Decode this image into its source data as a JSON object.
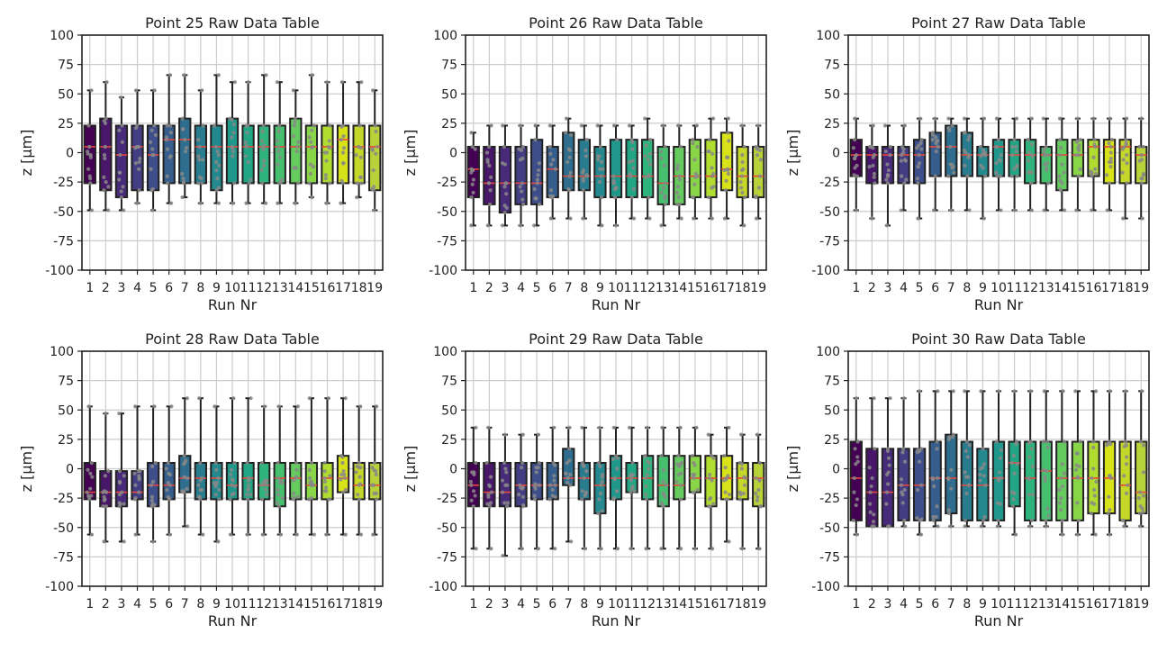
{
  "figure": {
    "background": "#ffffff",
    "grid_color": "#cccccc",
    "median_color": "#e8453c",
    "whisker_color": "#222222",
    "point_color": "#888888"
  },
  "chart_data": [
    {
      "type": "box",
      "title": "Point 25 Raw Data Table",
      "xlabel": "Run Nr",
      "ylabel": "z [µm]",
      "ylim": [
        -100,
        100
      ],
      "yticks": [
        -100,
        -75,
        -50,
        -25,
        0,
        25,
        50,
        75,
        100
      ],
      "categories": [
        "1",
        "2",
        "3",
        "4",
        "5",
        "6",
        "7",
        "8",
        "9",
        "10",
        "11",
        "12",
        "13",
        "14",
        "15",
        "16",
        "17",
        "18",
        "19"
      ],
      "grid": true,
      "boxes": [
        {
          "whislo": -49,
          "q1": -26,
          "med": 5,
          "q3": 23,
          "whishi": 53
        },
        {
          "whislo": -49,
          "q1": -32,
          "med": 5,
          "q3": 29,
          "whishi": 60
        },
        {
          "whislo": -49,
          "q1": -38,
          "med": -2,
          "q3": 23,
          "whishi": 47
        },
        {
          "whislo": -43,
          "q1": -32,
          "med": 5,
          "q3": 23,
          "whishi": 53
        },
        {
          "whislo": -49,
          "q1": -32,
          "med": -2,
          "q3": 23,
          "whishi": 53
        },
        {
          "whislo": -43,
          "q1": -26,
          "med": 11,
          "q3": 23,
          "whishi": 66
        },
        {
          "whislo": -38,
          "q1": -26,
          "med": 11,
          "q3": 29,
          "whishi": 66
        },
        {
          "whislo": -43,
          "q1": -26,
          "med": 5,
          "q3": 23,
          "whishi": 53
        },
        {
          "whislo": -43,
          "q1": -32,
          "med": 5,
          "q3": 23,
          "whishi": 66
        },
        {
          "whislo": -43,
          "q1": -26,
          "med": 5,
          "q3": 29,
          "whishi": 60
        },
        {
          "whislo": -43,
          "q1": -26,
          "med": 5,
          "q3": 23,
          "whishi": 60
        },
        {
          "whislo": -43,
          "q1": -26,
          "med": 5,
          "q3": 23,
          "whishi": 66
        },
        {
          "whislo": -43,
          "q1": -26,
          "med": 5,
          "q3": 23,
          "whishi": 60
        },
        {
          "whislo": -43,
          "q1": -26,
          "med": 5,
          "q3": 29,
          "whishi": 53
        },
        {
          "whislo": -38,
          "q1": -26,
          "med": 5,
          "q3": 23,
          "whishi": 66
        },
        {
          "whislo": -43,
          "q1": -26,
          "med": 5,
          "q3": 23,
          "whishi": 60
        },
        {
          "whislo": -43,
          "q1": -26,
          "med": 11,
          "q3": 23,
          "whishi": 60
        },
        {
          "whislo": -38,
          "q1": -26,
          "med": 5,
          "q3": 23,
          "whishi": 60
        },
        {
          "whislo": -49,
          "q1": -32,
          "med": 5,
          "q3": 23,
          "whishi": 53
        }
      ]
    },
    {
      "type": "box",
      "title": "Point 26 Raw Data Table",
      "xlabel": "Run Nr",
      "ylabel": "z [µm]",
      "ylim": [
        -100,
        100
      ],
      "yticks": [
        -100,
        -75,
        -50,
        -25,
        0,
        25,
        50,
        75,
        100
      ],
      "categories": [
        "1",
        "2",
        "3",
        "4",
        "5",
        "6",
        "7",
        "8",
        "9",
        "10",
        "11",
        "12",
        "13",
        "14",
        "15",
        "16",
        "17",
        "18",
        "19"
      ],
      "grid": true,
      "boxes": [
        {
          "whislo": -62,
          "q1": -38,
          "med": -14,
          "q3": 5,
          "whishi": 17
        },
        {
          "whislo": -62,
          "q1": -44,
          "med": -26,
          "q3": 5,
          "whishi": 23
        },
        {
          "whislo": -62,
          "q1": -51,
          "med": -26,
          "q3": 5,
          "whishi": 23
        },
        {
          "whislo": -62,
          "q1": -44,
          "med": -26,
          "q3": 5,
          "whishi": 23
        },
        {
          "whislo": -62,
          "q1": -44,
          "med": -26,
          "q3": 11,
          "whishi": 23
        },
        {
          "whislo": -56,
          "q1": -38,
          "med": -14,
          "q3": 5,
          "whishi": 23
        },
        {
          "whislo": -56,
          "q1": -32,
          "med": -20,
          "q3": 17,
          "whishi": 29
        },
        {
          "whislo": -56,
          "q1": -32,
          "med": -20,
          "q3": 11,
          "whishi": 23
        },
        {
          "whislo": -62,
          "q1": -38,
          "med": -20,
          "q3": 5,
          "whishi": 23
        },
        {
          "whislo": -62,
          "q1": -38,
          "med": -20,
          "q3": 11,
          "whishi": 23
        },
        {
          "whislo": -56,
          "q1": -38,
          "med": -20,
          "q3": 11,
          "whishi": 23
        },
        {
          "whislo": -56,
          "q1": -38,
          "med": -20,
          "q3": 11,
          "whishi": 29
        },
        {
          "whislo": -62,
          "q1": -44,
          "med": -26,
          "q3": 5,
          "whishi": 23
        },
        {
          "whislo": -56,
          "q1": -44,
          "med": -20,
          "q3": 5,
          "whishi": 23
        },
        {
          "whislo": -56,
          "q1": -38,
          "med": -20,
          "q3": 11,
          "whishi": 23
        },
        {
          "whislo": -56,
          "q1": -38,
          "med": -20,
          "q3": 11,
          "whishi": 29
        },
        {
          "whislo": -56,
          "q1": -32,
          "med": -14,
          "q3": 17,
          "whishi": 29
        },
        {
          "whislo": -62,
          "q1": -38,
          "med": -20,
          "q3": 5,
          "whishi": 23
        },
        {
          "whislo": -56,
          "q1": -38,
          "med": -20,
          "q3": 5,
          "whishi": 23
        }
      ]
    },
    {
      "type": "box",
      "title": "Point 27 Raw Data Table",
      "xlabel": "Run Nr",
      "ylabel": "z [µm]",
      "ylim": [
        -100,
        100
      ],
      "yticks": [
        -100,
        -75,
        -50,
        -25,
        0,
        25,
        50,
        75,
        100
      ],
      "categories": [
        "1",
        "2",
        "3",
        "4",
        "5",
        "6",
        "7",
        "8",
        "9",
        "10",
        "11",
        "12",
        "13",
        "14",
        "15",
        "16",
        "17",
        "18",
        "19"
      ],
      "grid": true,
      "boxes": [
        {
          "whislo": -49,
          "q1": -20,
          "med": -2,
          "q3": 11,
          "whishi": 29
        },
        {
          "whislo": -56,
          "q1": -26,
          "med": -2,
          "q3": 5,
          "whishi": 23
        },
        {
          "whislo": -62,
          "q1": -26,
          "med": -2,
          "q3": 5,
          "whishi": 23
        },
        {
          "whislo": -49,
          "q1": -26,
          "med": -2,
          "q3": 5,
          "whishi": 23
        },
        {
          "whislo": -56,
          "q1": -26,
          "med": -2,
          "q3": 11,
          "whishi": 29
        },
        {
          "whislo": -49,
          "q1": -20,
          "med": 5,
          "q3": 17,
          "whishi": 29
        },
        {
          "whislo": -49,
          "q1": -20,
          "med": 5,
          "q3": 23,
          "whishi": 29
        },
        {
          "whislo": -49,
          "q1": -20,
          "med": -2,
          "q3": 17,
          "whishi": 29
        },
        {
          "whislo": -56,
          "q1": -20,
          "med": -2,
          "q3": 5,
          "whishi": 29
        },
        {
          "whislo": -49,
          "q1": -20,
          "med": 5,
          "q3": 11,
          "whishi": 29
        },
        {
          "whislo": -49,
          "q1": -20,
          "med": -2,
          "q3": 11,
          "whishi": 29
        },
        {
          "whislo": -49,
          "q1": -26,
          "med": -2,
          "q3": 11,
          "whishi": 29
        },
        {
          "whislo": -49,
          "q1": -26,
          "med": -2,
          "q3": 5,
          "whishi": 29
        },
        {
          "whislo": -49,
          "q1": -32,
          "med": -2,
          "q3": 11,
          "whishi": 29
        },
        {
          "whislo": -49,
          "q1": -20,
          "med": -2,
          "q3": 11,
          "whishi": 29
        },
        {
          "whislo": -49,
          "q1": -20,
          "med": 5,
          "q3": 11,
          "whishi": 29
        },
        {
          "whislo": -49,
          "q1": -26,
          "med": 5,
          "q3": 11,
          "whishi": 29
        },
        {
          "whislo": -56,
          "q1": -26,
          "med": 5,
          "q3": 11,
          "whishi": 29
        },
        {
          "whislo": -56,
          "q1": -26,
          "med": -2,
          "q3": 5,
          "whishi": 29
        }
      ]
    },
    {
      "type": "box",
      "title": "Point 28 Raw Data Table",
      "xlabel": "Run Nr",
      "ylabel": "z [µm]",
      "ylim": [
        -100,
        100
      ],
      "yticks": [
        -100,
        -75,
        -50,
        -25,
        0,
        25,
        50,
        75,
        100
      ],
      "categories": [
        "1",
        "2",
        "3",
        "4",
        "5",
        "6",
        "7",
        "8",
        "9",
        "10",
        "11",
        "12",
        "13",
        "14",
        "15",
        "16",
        "17",
        "18",
        "19"
      ],
      "grid": true,
      "boxes": [
        {
          "whislo": -56,
          "q1": -26,
          "med": -20,
          "q3": 5,
          "whishi": 53
        },
        {
          "whislo": -62,
          "q1": -32,
          "med": -20,
          "q3": -2,
          "whishi": 47
        },
        {
          "whislo": -62,
          "q1": -32,
          "med": -20,
          "q3": -2,
          "whishi": 47
        },
        {
          "whislo": -56,
          "q1": -26,
          "med": -20,
          "q3": -2,
          "whishi": 53
        },
        {
          "whislo": -62,
          "q1": -32,
          "med": -14,
          "q3": 5,
          "whishi": 53
        },
        {
          "whislo": -56,
          "q1": -26,
          "med": -14,
          "q3": 5,
          "whishi": 53
        },
        {
          "whislo": -49,
          "q1": -20,
          "med": -8,
          "q3": 11,
          "whishi": 60
        },
        {
          "whislo": -56,
          "q1": -26,
          "med": -8,
          "q3": 5,
          "whishi": 60
        },
        {
          "whislo": -62,
          "q1": -26,
          "med": -8,
          "q3": 5,
          "whishi": 53
        },
        {
          "whislo": -56,
          "q1": -26,
          "med": -14,
          "q3": 5,
          "whishi": 60
        },
        {
          "whislo": -56,
          "q1": -26,
          "med": -8,
          "q3": 5,
          "whishi": 60
        },
        {
          "whislo": -56,
          "q1": -26,
          "med": -14,
          "q3": 5,
          "whishi": 53
        },
        {
          "whislo": -56,
          "q1": -32,
          "med": -8,
          "q3": 5,
          "whishi": 53
        },
        {
          "whislo": -56,
          "q1": -26,
          "med": -8,
          "q3": 5,
          "whishi": 53
        },
        {
          "whislo": -56,
          "q1": -26,
          "med": -14,
          "q3": 5,
          "whishi": 60
        },
        {
          "whislo": -56,
          "q1": -26,
          "med": -8,
          "q3": 5,
          "whishi": 60
        },
        {
          "whislo": -56,
          "q1": -20,
          "med": -8,
          "q3": 11,
          "whishi": 60
        },
        {
          "whislo": -56,
          "q1": -26,
          "med": -14,
          "q3": 5,
          "whishi": 53
        },
        {
          "whislo": -56,
          "q1": -26,
          "med": -14,
          "q3": 5,
          "whishi": 53
        }
      ]
    },
    {
      "type": "box",
      "title": "Point 29 Raw Data Table",
      "xlabel": "Run Nr",
      "ylabel": "z [µm]",
      "ylim": [
        -100,
        100
      ],
      "yticks": [
        -100,
        -75,
        -50,
        -25,
        0,
        25,
        50,
        75,
        100
      ],
      "categories": [
        "1",
        "2",
        "3",
        "4",
        "5",
        "6",
        "7",
        "8",
        "9",
        "10",
        "11",
        "12",
        "13",
        "14",
        "15",
        "16",
        "17",
        "18",
        "19"
      ],
      "grid": true,
      "boxes": [
        {
          "whislo": -68,
          "q1": -32,
          "med": -14,
          "q3": 5,
          "whishi": 35
        },
        {
          "whislo": -68,
          "q1": -32,
          "med": -20,
          "q3": 5,
          "whishi": 35
        },
        {
          "whislo": -74,
          "q1": -32,
          "med": -20,
          "q3": 5,
          "whishi": 29
        },
        {
          "whislo": -68,
          "q1": -32,
          "med": -14,
          "q3": 5,
          "whishi": 29
        },
        {
          "whislo": -68,
          "q1": -26,
          "med": -14,
          "q3": 5,
          "whishi": 29
        },
        {
          "whislo": -68,
          "q1": -26,
          "med": -14,
          "q3": 5,
          "whishi": 35
        },
        {
          "whislo": -62,
          "q1": -14,
          "med": -8,
          "q3": 17,
          "whishi": 35
        },
        {
          "whislo": -68,
          "q1": -26,
          "med": -8,
          "q3": 5,
          "whishi": 35
        },
        {
          "whislo": -68,
          "q1": -38,
          "med": -14,
          "q3": 5,
          "whishi": 35
        },
        {
          "whislo": -68,
          "q1": -26,
          "med": -8,
          "q3": 11,
          "whishi": 35
        },
        {
          "whislo": -68,
          "q1": -20,
          "med": -8,
          "q3": 5,
          "whishi": 35
        },
        {
          "whislo": -68,
          "q1": -26,
          "med": -8,
          "q3": 11,
          "whishi": 35
        },
        {
          "whislo": -68,
          "q1": -32,
          "med": -14,
          "q3": 11,
          "whishi": 35
        },
        {
          "whislo": -68,
          "q1": -26,
          "med": -14,
          "q3": 11,
          "whishi": 35
        },
        {
          "whislo": -68,
          "q1": -20,
          "med": -8,
          "q3": 11,
          "whishi": 35
        },
        {
          "whislo": -68,
          "q1": -32,
          "med": -8,
          "q3": 11,
          "whishi": 29
        },
        {
          "whislo": -62,
          "q1": -26,
          "med": -8,
          "q3": 11,
          "whishi": 35
        },
        {
          "whislo": -68,
          "q1": -26,
          "med": -8,
          "q3": 5,
          "whishi": 29
        },
        {
          "whislo": -68,
          "q1": -32,
          "med": -8,
          "q3": 5,
          "whishi": 29
        }
      ]
    },
    {
      "type": "box",
      "title": "Point 30 Raw Data Table",
      "xlabel": "Run Nr",
      "ylabel": "z [µm]",
      "ylim": [
        -100,
        100
      ],
      "yticks": [
        -100,
        -75,
        -50,
        -25,
        0,
        25,
        50,
        75,
        100
      ],
      "categories": [
        "1",
        "2",
        "3",
        "4",
        "5",
        "6",
        "7",
        "8",
        "9",
        "10",
        "11",
        "12",
        "13",
        "14",
        "15",
        "16",
        "17",
        "18",
        "19"
      ],
      "grid": true,
      "boxes": [
        {
          "whislo": -56,
          "q1": -44,
          "med": -8,
          "q3": 23,
          "whishi": 60
        },
        {
          "whislo": -49,
          "q1": -49,
          "med": -20,
          "q3": 17,
          "whishi": 60
        },
        {
          "whislo": -49,
          "q1": -49,
          "med": -20,
          "q3": 17,
          "whishi": 60
        },
        {
          "whislo": -49,
          "q1": -44,
          "med": -14,
          "q3": 17,
          "whishi": 60
        },
        {
          "whislo": -56,
          "q1": -44,
          "med": -14,
          "q3": 17,
          "whishi": 66
        },
        {
          "whislo": -49,
          "q1": -44,
          "med": -8,
          "q3": 23,
          "whishi": 66
        },
        {
          "whislo": -49,
          "q1": -38,
          "med": -8,
          "q3": 29,
          "whishi": 66
        },
        {
          "whislo": -49,
          "q1": -44,
          "med": -14,
          "q3": 23,
          "whishi": 66
        },
        {
          "whislo": -49,
          "q1": -44,
          "med": -14,
          "q3": 17,
          "whishi": 66
        },
        {
          "whislo": -49,
          "q1": -44,
          "med": -8,
          "q3": 23,
          "whishi": 66
        },
        {
          "whislo": -56,
          "q1": -32,
          "med": 5,
          "q3": 23,
          "whishi": 66
        },
        {
          "whislo": -49,
          "q1": -44,
          "med": -8,
          "q3": 23,
          "whishi": 66
        },
        {
          "whislo": -49,
          "q1": -44,
          "med": -2,
          "q3": 23,
          "whishi": 66
        },
        {
          "whislo": -56,
          "q1": -44,
          "med": -8,
          "q3": 23,
          "whishi": 66
        },
        {
          "whislo": -56,
          "q1": -44,
          "med": -8,
          "q3": 23,
          "whishi": 66
        },
        {
          "whislo": -56,
          "q1": -38,
          "med": -8,
          "q3": 23,
          "whishi": 66
        },
        {
          "whislo": -56,
          "q1": -38,
          "med": -8,
          "q3": 23,
          "whishi": 66
        },
        {
          "whislo": -49,
          "q1": -44,
          "med": -14,
          "q3": 23,
          "whishi": 66
        },
        {
          "whislo": -49,
          "q1": -38,
          "med": -20,
          "q3": 23,
          "whishi": 66
        }
      ]
    }
  ],
  "palette": [
    "#440154",
    "#481769",
    "#472a7a",
    "#433d84",
    "#3d4e8a",
    "#355e8d",
    "#2e6d8e",
    "#297b8e",
    "#23898e",
    "#1f978b",
    "#21a585",
    "#2eb37c",
    "#46c06f",
    "#65cb5e",
    "#89d548",
    "#b0dd2f",
    "#d8e219",
    "#c5d82a",
    "#b8d23a"
  ]
}
